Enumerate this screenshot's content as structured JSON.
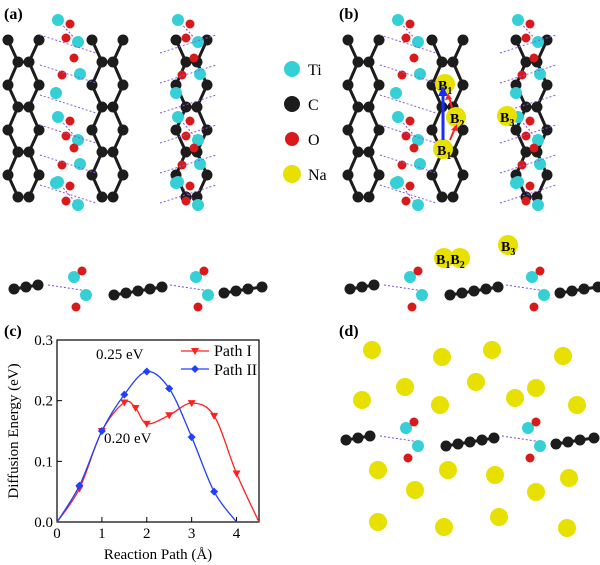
{
  "panels": {
    "a": "(a)",
    "b": "(b)",
    "c": "(c)",
    "d": "(d)"
  },
  "legend": [
    {
      "label": "Ti",
      "color": "#35d0d6"
    },
    {
      "label": "C",
      "color": "#1c1c1c"
    },
    {
      "label": "O",
      "color": "#d91a1a"
    },
    {
      "label": "Na",
      "color": "#e8e000"
    }
  ],
  "sites": [
    {
      "base": "B",
      "sub": "1"
    },
    {
      "base": "B",
      "sub": "2"
    },
    {
      "base": "B",
      "sub": "3"
    }
  ],
  "chart_data": {
    "type": "line",
    "xlabel": "Reaction Path (Å)",
    "ylabel": "Diffusion Energy (eV)",
    "xlim": [
      0,
      4.5
    ],
    "ylim": [
      0,
      0.3
    ],
    "xticks": [
      "0",
      "1",
      "2",
      "3",
      "4"
    ],
    "yticks": [
      "0.0",
      "0.1",
      "0.2",
      "0.3"
    ],
    "legend_position": "top-right",
    "series": [
      {
        "name": "Path I",
        "color": "#ff2020",
        "marker": "triangle-down",
        "x": [
          0,
          0.5,
          1.0,
          1.5,
          1.75,
          2.0,
          2.5,
          3.0,
          3.5,
          4.0,
          4.5
        ],
        "y": [
          0.0,
          0.055,
          0.15,
          0.197,
          0.188,
          0.162,
          0.176,
          0.196,
          0.175,
          0.08,
          0.0
        ]
      },
      {
        "name": "Path II",
        "color": "#2040ff",
        "marker": "diamond",
        "x": [
          0,
          0.5,
          1.0,
          1.5,
          2.0,
          2.5,
          3.0,
          3.5,
          4.0
        ],
        "y": [
          0.0,
          0.06,
          0.15,
          0.21,
          0.248,
          0.22,
          0.14,
          0.05,
          0.0
        ]
      }
    ],
    "annotations": [
      "0.25 eV",
      "0.20 eV"
    ]
  }
}
